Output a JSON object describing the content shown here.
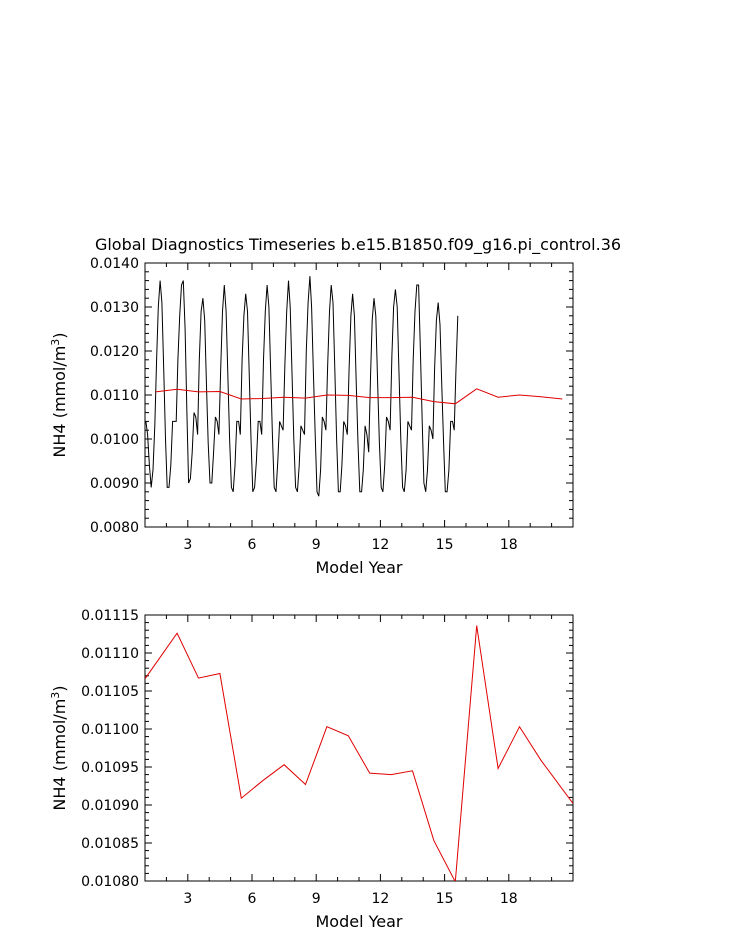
{
  "title": "Global Diagnostics Timeseries b.e15.B1850.f09_g16.pi_control.36",
  "chart_data": [
    {
      "type": "line",
      "xlabel": "Model Year",
      "ylabel_prefix": "NH4 (mmol/m",
      "ylabel_sup": "3",
      "ylabel_suffix": ")",
      "xlim": [
        1,
        21
      ],
      "ylim": [
        0.008,
        0.014
      ],
      "xticks": [
        3,
        6,
        9,
        12,
        15,
        18
      ],
      "xtick_labels": [
        "3",
        "6",
        "9",
        "12",
        "15",
        "18"
      ],
      "yticks": [
        0.008,
        0.009,
        0.01,
        0.011,
        0.012,
        0.013,
        0.014
      ],
      "ytick_labels": [
        "0.0080",
        "0.0090",
        "0.0100",
        "0.0110",
        "0.0120",
        "0.0130",
        "0.0140"
      ],
      "monthly": {
        "color": "#000000",
        "start_x": 1.04,
        "step": 0.0833,
        "values": [
          0.0104,
          0.0101,
          0.0094,
          0.0089,
          0.0093,
          0.0103,
          0.0118,
          0.013,
          0.0136,
          0.0131,
          0.0116,
          0.01,
          0.0089,
          0.0089,
          0.0094,
          0.0104,
          0.0104,
          0.0104,
          0.0118,
          0.0128,
          0.0135,
          0.0136,
          0.0125,
          0.0106,
          0.009,
          0.0091,
          0.0097,
          0.0106,
          0.0105,
          0.0101,
          0.0118,
          0.0129,
          0.0132,
          0.0127,
          0.0112,
          0.0099,
          0.009,
          0.009,
          0.0097,
          0.0105,
          0.0104,
          0.0101,
          0.0116,
          0.0129,
          0.0135,
          0.0129,
          0.0114,
          0.01,
          0.0089,
          0.0088,
          0.0094,
          0.0104,
          0.0104,
          0.0101,
          0.0118,
          0.0128,
          0.0133,
          0.0129,
          0.0115,
          0.01,
          0.0088,
          0.0089,
          0.0095,
          0.0104,
          0.0104,
          0.0101,
          0.0118,
          0.0129,
          0.0135,
          0.013,
          0.0116,
          0.0101,
          0.0089,
          0.0088,
          0.0095,
          0.0104,
          0.0103,
          0.0102,
          0.0117,
          0.0129,
          0.0136,
          0.013,
          0.0115,
          0.01,
          0.0089,
          0.0088,
          0.0094,
          0.0103,
          0.0102,
          0.0101,
          0.012,
          0.0131,
          0.0137,
          0.013,
          0.0115,
          0.0101,
          0.0088,
          0.0087,
          0.0093,
          0.0105,
          0.0104,
          0.0102,
          0.0117,
          0.0129,
          0.0135,
          0.0131,
          0.0116,
          0.01,
          0.0088,
          0.0088,
          0.0094,
          0.0104,
          0.0103,
          0.0101,
          0.0116,
          0.0128,
          0.0133,
          0.0128,
          0.0113,
          0.0099,
          0.0088,
          0.0088,
          0.0093,
          0.0103,
          0.0101,
          0.0097,
          0.0114,
          0.0127,
          0.0132,
          0.0128,
          0.0113,
          0.0099,
          0.0089,
          0.0088,
          0.0094,
          0.0105,
          0.0104,
          0.0102,
          0.0119,
          0.013,
          0.0134,
          0.013,
          0.0115,
          0.01,
          0.0089,
          0.0088,
          0.0093,
          0.0104,
          0.0103,
          0.0102,
          0.0118,
          0.0129,
          0.0135,
          0.0135,
          0.012,
          0.0104,
          0.009,
          0.0088,
          0.0093,
          0.0103,
          0.0102,
          0.01,
          0.0116,
          0.0127,
          0.0131,
          0.0126,
          0.0112,
          0.0099,
          0.0088,
          0.0088,
          0.0093,
          0.0104,
          0.0104,
          0.0102,
          0.0116,
          0.0128
        ]
      },
      "annual": {
        "color": "#e00000",
        "x": [
          1.5,
          2.5,
          3.5,
          4.5,
          5.5,
          6.5,
          7.5,
          8.5,
          9.5,
          10.5,
          11.5,
          12.5,
          13.5,
          14.5,
          15.5,
          16.5,
          17.5,
          18.5,
          19.5,
          20.5
        ],
        "values": [
          0.01107,
          0.01113,
          0.01107,
          0.01108,
          0.01091,
          0.01092,
          0.01095,
          0.01093,
          0.011,
          0.01099,
          0.01094,
          0.01094,
          0.01095,
          0.01085,
          0.0108,
          0.01114,
          0.01095,
          0.011,
          0.01096,
          0.01091
        ]
      }
    },
    {
      "type": "line",
      "xlabel": "Model Year",
      "ylabel_prefix": "NH4 (mmol/m",
      "ylabel_sup": "3",
      "ylabel_suffix": ")",
      "xlim": [
        1,
        21
      ],
      "ylim": [
        0.0108,
        0.01115
      ],
      "xticks": [
        3,
        6,
        9,
        12,
        15,
        18
      ],
      "xtick_labels": [
        "3",
        "6",
        "9",
        "12",
        "15",
        "18"
      ],
      "yticks": [
        0.0108,
        0.01085,
        0.0109,
        0.01095,
        0.011,
        0.01105,
        0.0111,
        0.01115
      ],
      "ytick_labels": [
        "0.01080",
        "0.01085",
        "0.01090",
        "0.01095",
        "0.01100",
        "0.01105",
        "0.01110",
        "0.01115"
      ],
      "annual": {
        "color": "#e00000",
        "x": [
          1.0,
          2.5,
          3.5,
          4.5,
          5.5,
          6.5,
          7.5,
          8.5,
          9.5,
          10.5,
          11.5,
          12.5,
          13.5,
          14.5,
          15.5,
          16.5,
          17.5,
          18.5,
          19.5,
          21.0
        ],
        "values": [
          0.011066,
          0.011126,
          0.011067,
          0.011073,
          0.010909,
          0.010932,
          0.010953,
          0.010927,
          0.011003,
          0.010991,
          0.010942,
          0.01094,
          0.010945,
          0.010853,
          0.010799,
          0.011136,
          0.010948,
          0.011003,
          0.010959,
          0.010902
        ]
      }
    }
  ]
}
